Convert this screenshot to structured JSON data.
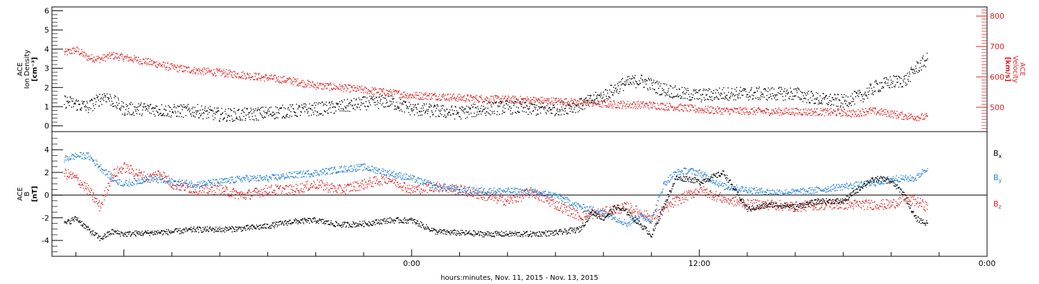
{
  "chart_data": [
    {
      "type": "scatter",
      "panel": "top",
      "ylabel_lines": [
        "ACE",
        "Ion Density"
      ],
      "yunit": "[cm⁻³]",
      "ylim": [
        -0.3,
        6.2
      ],
      "yticks": [
        "0",
        "1",
        "2",
        "3",
        "4",
        "5",
        "6"
      ],
      "y2label_lines": [
        "ACE",
        "Velocity"
      ],
      "y2unit": "[km/s]",
      "y2lim": [
        420,
        830
      ],
      "y2ticks": [
        "500",
        "600",
        "700",
        "800"
      ],
      "grid": false,
      "series": [
        {
          "color": "#000000",
          "axis": "left",
          "x": [
            -14.5,
            -13.5,
            -12.8,
            -12,
            -11,
            -10,
            -9,
            -8,
            -7,
            -6,
            -5,
            -4,
            -3,
            -2,
            -1,
            0,
            1,
            2,
            3,
            4,
            5,
            6,
            7,
            8,
            8.8,
            9.5,
            10.3,
            11.2,
            12,
            13,
            14,
            15,
            16,
            17,
            18,
            18.8,
            19.4,
            20,
            20.6,
            21,
            21.5
          ],
          "values": [
            1.3,
            1.0,
            1.6,
            0.9,
            0.9,
            0.8,
            0.8,
            0.6,
            0.6,
            0.7,
            0.8,
            0.9,
            1.0,
            1.2,
            1.3,
            0.9,
            0.8,
            0.7,
            0.9,
            1.0,
            0.9,
            0.9,
            1.1,
            1.6,
            2.2,
            2.4,
            2.0,
            1.7,
            1.6,
            1.7,
            1.7,
            1.7,
            1.7,
            1.4,
            1.3,
            1.6,
            2.1,
            2.3,
            2.4,
            3.0,
            3.5
          ]
        },
        {
          "color": "#e01e1e",
          "axis": "right",
          "x": [
            -14.5,
            -14,
            -13.5,
            -13,
            -12.5,
            -12,
            -11.5,
            -11,
            -10,
            -9,
            -8,
            -7,
            -6,
            -5,
            -4,
            -3,
            -2,
            -1,
            0,
            1,
            2,
            3,
            4,
            5,
            6,
            7,
            8,
            9,
            10,
            11,
            12,
            13,
            14,
            15,
            16,
            17,
            18,
            18.5,
            19,
            19.5,
            20,
            20.5,
            21,
            21.5
          ],
          "values": [
            680,
            690,
            665,
            660,
            672,
            665,
            658,
            650,
            632,
            622,
            615,
            607,
            598,
            588,
            573,
            566,
            558,
            550,
            540,
            538,
            532,
            529,
            527,
            525,
            521,
            518,
            512,
            510,
            508,
            502,
            494,
            490,
            489,
            487,
            487,
            486,
            484,
            480,
            490,
            486,
            480,
            473,
            470,
            468
          ]
        }
      ]
    },
    {
      "type": "scatter",
      "panel": "bottom",
      "ylabel_lines": [
        "ACE",
        "B"
      ],
      "yunit": "[nT]",
      "ylim": [
        -5.4,
        5.6
      ],
      "yticks": [
        "-4",
        "-2",
        "0",
        "2",
        "4"
      ],
      "xlabel": "hours:minutes, Nov. 11, 2015 - Nov. 13, 2015",
      "xlim": [
        -15,
        24
      ],
      "xticks": [
        {
          "x": 0,
          "label": "0:00"
        },
        {
          "x": 12,
          "label": "12:00"
        },
        {
          "x": 24,
          "label": "0:00"
        }
      ],
      "zero_line": true,
      "grid": false,
      "series": [
        {
          "name": "B",
          "subscript": "x",
          "color": "#000000",
          "x": [
            -14.5,
            -14,
            -13.5,
            -13,
            -12.5,
            -12,
            -11,
            -10,
            -9,
            -8,
            -7,
            -6,
            -5,
            -4,
            -3,
            -2,
            -1,
            0,
            1,
            2,
            3,
            4,
            5,
            6,
            7,
            7.5,
            8,
            8.5,
            9,
            9.5,
            10,
            10.5,
            11,
            11.5,
            12,
            13,
            14,
            15,
            16,
            17,
            18,
            19,
            19.5,
            20,
            20.5,
            21,
            21.5
          ],
          "values": [
            -2.5,
            -2.0,
            -3.0,
            -3.8,
            -3.2,
            -3.4,
            -3.3,
            -3.2,
            -3.0,
            -3.0,
            -2.9,
            -2.7,
            -2.3,
            -2.2,
            -2.6,
            -2.5,
            -2.2,
            -2.2,
            -3.2,
            -3.3,
            -3.4,
            -3.4,
            -3.4,
            -3.3,
            -3.0,
            -1.5,
            -2.0,
            -1.0,
            -1.5,
            -2.5,
            -3.5,
            -1.0,
            1.5,
            1.5,
            1.2,
            2.0,
            -1.2,
            -0.8,
            -1.0,
            -0.5,
            -0.5,
            1.2,
            1.5,
            1.2,
            0.2,
            -2.0,
            -2.5
          ]
        },
        {
          "name": "B",
          "subscript": "y",
          "color": "#1e7fd6",
          "x": [
            -14.5,
            -14,
            -13.5,
            -13,
            -12.5,
            -12,
            -11,
            -10,
            -9,
            -8,
            -7,
            -6,
            -5,
            -4,
            -3,
            -2,
            -1,
            0,
            1,
            2,
            3,
            4,
            5,
            6,
            7,
            8,
            8.5,
            9,
            9.5,
            10,
            10.5,
            11,
            11.5,
            12,
            13,
            14,
            15,
            16,
            17,
            18,
            19,
            19.5,
            20,
            20.5,
            21,
            21.5
          ],
          "values": [
            3.2,
            3.5,
            3.5,
            2.5,
            1.5,
            1.0,
            1.5,
            1.2,
            1.0,
            1.2,
            1.5,
            1.5,
            1.8,
            2.0,
            2.3,
            2.5,
            2.0,
            1.5,
            0.8,
            0.5,
            0.4,
            0.4,
            0.3,
            0.0,
            -1.0,
            -1.5,
            -2.0,
            -2.5,
            -1.8,
            -2.2,
            1.0,
            2.0,
            2.2,
            2.0,
            0.8,
            0.5,
            0.3,
            0.3,
            0.5,
            0.8,
            1.0,
            1.2,
            1.5,
            1.5,
            1.5,
            2.5
          ]
        },
        {
          "name": "B",
          "subscript": "z",
          "color": "#e01e1e",
          "x": [
            -14.5,
            -14,
            -13.5,
            -13,
            -12.5,
            -12,
            -11.5,
            -11,
            -10.5,
            -10,
            -9,
            -8,
            -7,
            -6,
            -5,
            -4,
            -3,
            -2,
            -1,
            0,
            1,
            2,
            3,
            4,
            5,
            6,
            7,
            8,
            9,
            10,
            11,
            12,
            13,
            14,
            15,
            16,
            17,
            18,
            19,
            20,
            20.5,
            21,
            21.5
          ],
          "values": [
            2.0,
            1.5,
            0.5,
            -1.0,
            1.8,
            2.5,
            2.0,
            1.5,
            2.0,
            1.0,
            0.5,
            0.5,
            0.0,
            0.5,
            0.5,
            1.0,
            0.5,
            1.0,
            1.5,
            0.5,
            0.8,
            0.5,
            0.0,
            -0.5,
            0.3,
            -0.8,
            -1.8,
            -1.5,
            -1.0,
            -2.0,
            -0.5,
            0.5,
            -0.3,
            -0.8,
            -0.8,
            -1.0,
            -0.8,
            -0.8,
            -0.8,
            -0.8,
            -0.3,
            -0.5,
            -1.0
          ]
        }
      ]
    }
  ]
}
